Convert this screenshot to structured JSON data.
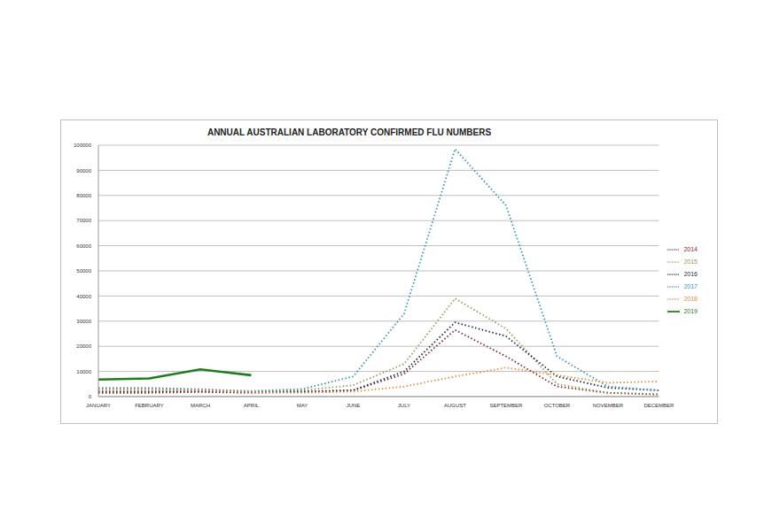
{
  "chart_data": {
    "type": "line",
    "title": "ANNUAL AUSTRALIAN LABORATORY CONFIRMED FLU NUMBERS",
    "categories": [
      "JANUARY",
      "FEBRUARY",
      "MARCH",
      "APRIL",
      "MAY",
      "JUNE",
      "JULY",
      "AUGUST",
      "SEPTEMBER",
      "OCTOBER",
      "NOVEMBER",
      "DECEMBER"
    ],
    "series": [
      {
        "name": "2014",
        "color": "#7b2a3b",
        "line_style": "dotted",
        "values": [
          1500,
          1500,
          1800,
          1500,
          1800,
          2500,
          9000,
          26500,
          16000,
          4000,
          1500,
          800
        ]
      },
      {
        "name": "2015",
        "color": "#a29a5b",
        "line_style": "dotted",
        "values": [
          3000,
          3000,
          3000,
          2000,
          2500,
          4500,
          13000,
          39000,
          27000,
          5000,
          1500,
          1000
        ]
      },
      {
        "name": "2016",
        "color": "#1f2a4a",
        "line_style": "dotted",
        "values": [
          2000,
          2000,
          2200,
          1800,
          2000,
          2500,
          10000,
          29500,
          24000,
          8000,
          3500,
          2500
        ]
      },
      {
        "name": "2017",
        "color": "#3a94b5",
        "line_style": "dotted",
        "values": [
          3500,
          3500,
          2800,
          2200,
          3000,
          8000,
          33000,
          98500,
          76000,
          16000,
          4000,
          2500
        ]
      },
      {
        "name": "2018",
        "color": "#e38b3e",
        "line_style": "dotted",
        "values": [
          2500,
          2500,
          2500,
          1800,
          1500,
          2000,
          4000,
          8000,
          11500,
          8500,
          5500,
          6000
        ]
      },
      {
        "name": "2019",
        "color": "#1e7b1e",
        "line_style": "solid",
        "values": [
          6800,
          7200,
          10800,
          8500,
          null,
          null,
          null,
          null,
          null,
          null,
          null,
          null
        ]
      }
    ],
    "ylim": [
      0,
      100000
    ],
    "yticks": [
      0,
      10000,
      20000,
      30000,
      40000,
      50000,
      60000,
      70000,
      80000,
      90000,
      100000
    ],
    "grid": true,
    "legend": "right"
  }
}
